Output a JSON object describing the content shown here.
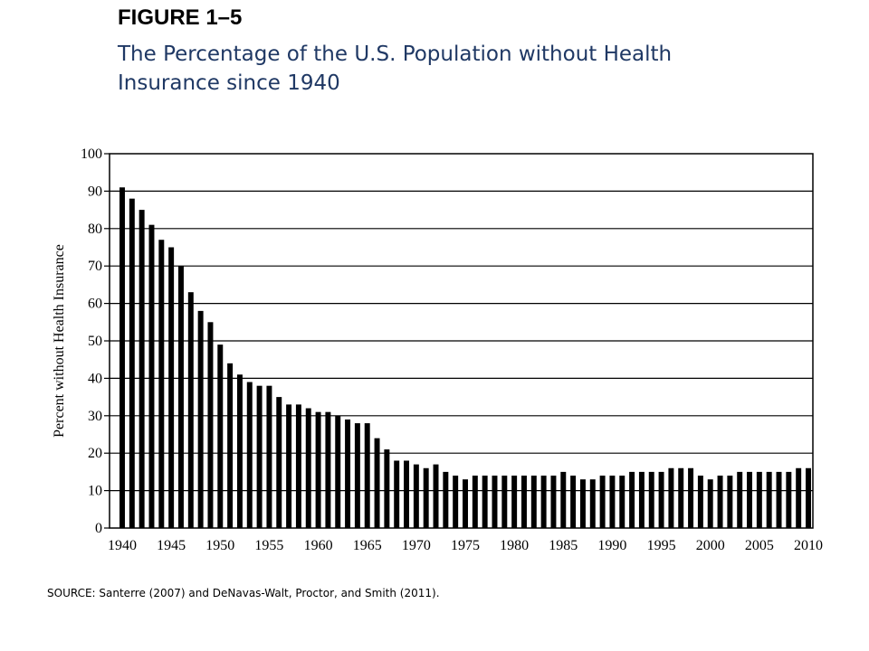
{
  "figure": {
    "label": "FIGURE 1–5",
    "title": "The Percentage of the U.S. Population without Health Insurance since 1940"
  },
  "source": "SOURCE: Santerre (2007) and DeNavas-Walt, Proctor, and Smith (2011).",
  "chart_data": {
    "type": "bar",
    "title": "",
    "xlabel": "",
    "ylabel": "Percent without Health Insurance",
    "ylim": [
      0,
      100
    ],
    "yticks": [
      0,
      10,
      20,
      30,
      40,
      50,
      60,
      70,
      80,
      90,
      100
    ],
    "xticks": [
      1940,
      1945,
      1950,
      1955,
      1960,
      1965,
      1970,
      1975,
      1980,
      1985,
      1990,
      1995,
      2000,
      2005,
      2010
    ],
    "grid": "horizontal",
    "bar_color": "#000000",
    "years": [
      1940,
      1941,
      1942,
      1943,
      1944,
      1945,
      1946,
      1947,
      1948,
      1949,
      1950,
      1951,
      1952,
      1953,
      1954,
      1955,
      1956,
      1957,
      1958,
      1959,
      1960,
      1961,
      1962,
      1963,
      1964,
      1965,
      1966,
      1967,
      1968,
      1969,
      1970,
      1971,
      1972,
      1973,
      1974,
      1975,
      1976,
      1977,
      1978,
      1979,
      1980,
      1981,
      1982,
      1983,
      1984,
      1985,
      1986,
      1987,
      1988,
      1989,
      1990,
      1991,
      1992,
      1993,
      1994,
      1995,
      1996,
      1997,
      1998,
      1999,
      2000,
      2001,
      2002,
      2003,
      2004,
      2005,
      2006,
      2007,
      2008,
      2009,
      2010
    ],
    "values": [
      91,
      88,
      85,
      81,
      77,
      75,
      70,
      63,
      58,
      55,
      49,
      44,
      41,
      39,
      38,
      38,
      35,
      33,
      33,
      32,
      31,
      31,
      30,
      29,
      28,
      28,
      24,
      21,
      18,
      18,
      17,
      16,
      17,
      15,
      14,
      13,
      14,
      14,
      14,
      14,
      14,
      14,
      14,
      14,
      14,
      15,
      14,
      13,
      13,
      14,
      14,
      14,
      15,
      15,
      15,
      15,
      16,
      16,
      16,
      14,
      13,
      14,
      14,
      15,
      15,
      15,
      15,
      15,
      15,
      16,
      16
    ]
  }
}
